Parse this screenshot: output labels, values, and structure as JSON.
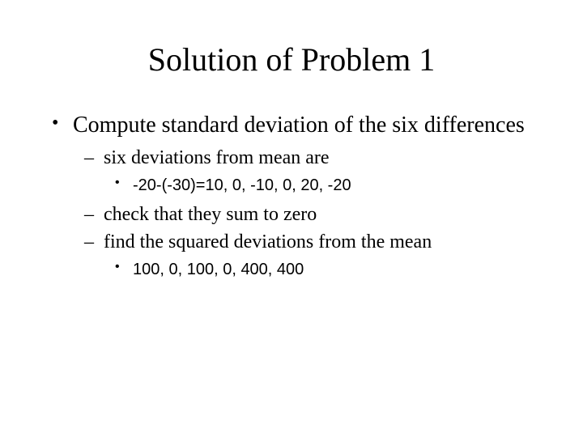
{
  "title": "Solution of Problem 1",
  "bullets": {
    "l1": {
      "text": "Compute standard deviation of the six differences"
    },
    "l2a": {
      "text": "six deviations from mean are"
    },
    "l3a": {
      "text": "-20-(-30)=10, 0, -10, 0, 20, -20"
    },
    "l2b": {
      "text": "check that they sum to zero"
    },
    "l2c": {
      "text": "find the squared deviations from the mean"
    },
    "l3b": {
      "text": "100, 0, 100, 0, 400, 400"
    }
  },
  "colors": {
    "background": "#ffffff",
    "text": "#000000"
  },
  "fonts": {
    "title_size": 40,
    "level1_size": 28,
    "level2_size": 24,
    "level3_size": 20,
    "family_serif": "Times New Roman",
    "family_sans": "Arial"
  }
}
